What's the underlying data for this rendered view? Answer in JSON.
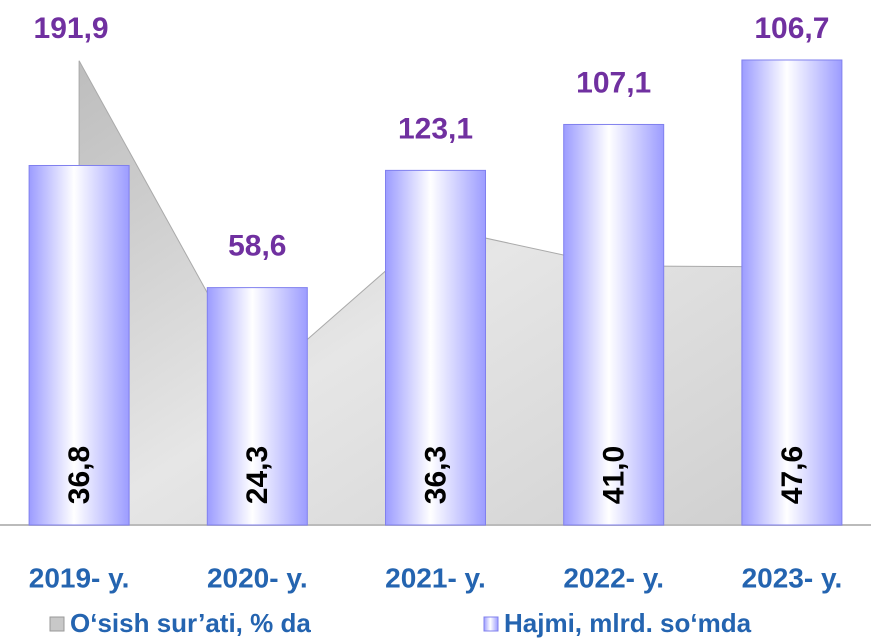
{
  "chart_data": {
    "type": "bar",
    "categories": [
      "2019- y.",
      "2020- y.",
      "2021- y.",
      "2022- y.",
      "2023- y."
    ],
    "series": [
      {
        "name": "O‘sish sur’ati, % da",
        "type": "area",
        "axis": "y2",
        "color": "#c8c8c8",
        "values": [
          191.9,
          58.6,
          123.1,
          107.1,
          106.7
        ],
        "value_labels": [
          "191,9",
          "58,6",
          "123,1",
          "107,1",
          "106,7"
        ]
      },
      {
        "name": "Hajmi, mlrd. so‘mda",
        "type": "bar",
        "color": "#a8a8ff",
        "values": [
          36.8,
          24.3,
          36.3,
          41.0,
          47.6
        ],
        "value_labels": [
          "36,8",
          "24,3",
          "36,3",
          "41,0",
          "47,6"
        ]
      }
    ],
    "ylim": [
      0,
      52
    ],
    "y2lim": [
      0,
      210
    ]
  }
}
